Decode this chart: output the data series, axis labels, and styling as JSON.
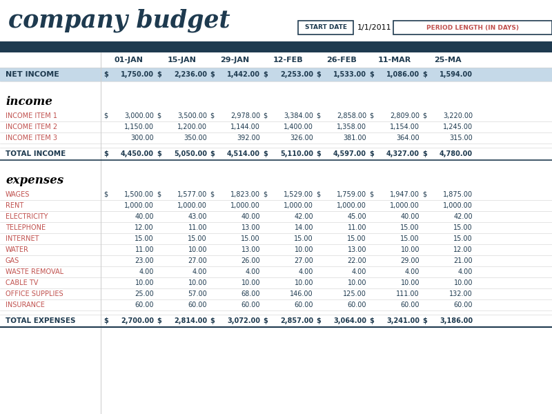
{
  "title": "company budget",
  "start_date_label": "START DATE",
  "start_date_value": "1/1/2011",
  "period_length_label": "PERIOD LENGTH (IN DAYS)",
  "col_headers": [
    "01-JAN",
    "15-JAN",
    "29-JAN",
    "12-FEB",
    "26-FEB",
    "11-MAR",
    "25-MA"
  ],
  "net_income": [
    1750.0,
    2236.0,
    1442.0,
    2253.0,
    1533.0,
    1086.0,
    1594.0
  ],
  "income_item1": [
    3000.0,
    3500.0,
    2978.0,
    3384.0,
    2858.0,
    2809.0,
    3220.0
  ],
  "income_item2": [
    1150.0,
    1200.0,
    1144.0,
    1400.0,
    1358.0,
    1154.0,
    1245.0
  ],
  "income_item3": [
    300.0,
    350.0,
    392.0,
    326.0,
    381.0,
    364.0,
    315.0
  ],
  "total_income": [
    4450.0,
    5050.0,
    4514.0,
    5110.0,
    4597.0,
    4327.0,
    4780.0
  ],
  "wages": [
    1500.0,
    1577.0,
    1823.0,
    1529.0,
    1759.0,
    1947.0,
    1875.0
  ],
  "rent": [
    1000.0,
    1000.0,
    1000.0,
    1000.0,
    1000.0,
    1000.0,
    1000.0
  ],
  "electricity": [
    40.0,
    43.0,
    40.0,
    42.0,
    45.0,
    40.0,
    42.0
  ],
  "telephone": [
    12.0,
    11.0,
    13.0,
    14.0,
    11.0,
    15.0,
    15.0
  ],
  "internet": [
    15.0,
    15.0,
    15.0,
    15.0,
    15.0,
    15.0,
    15.0
  ],
  "water": [
    11.0,
    10.0,
    13.0,
    10.0,
    13.0,
    10.0,
    12.0
  ],
  "gas": [
    23.0,
    27.0,
    26.0,
    27.0,
    22.0,
    29.0,
    21.0
  ],
  "waste_removal": [
    4.0,
    4.0,
    4.0,
    4.0,
    4.0,
    4.0,
    4.0
  ],
  "cable_tv": [
    10.0,
    10.0,
    10.0,
    10.0,
    10.0,
    10.0,
    10.0
  ],
  "office_supplies": [
    25.0,
    57.0,
    68.0,
    146.0,
    125.0,
    111.0,
    132.0
  ],
  "insurance": [
    60.0,
    60.0,
    60.0,
    60.0,
    60.0,
    60.0,
    60.0
  ],
  "total_expenses": [
    2700.0,
    2814.0,
    3072.0,
    2857.0,
    3064.0,
    3241.0,
    3186.0
  ],
  "dark_blue": "#1e3a4f",
  "mid_blue": "#c5d9e8",
  "red_item": "#c0504d",
  "white": "#ffffff",
  "light_gray": "#d0d0d0",
  "black": "#000000"
}
